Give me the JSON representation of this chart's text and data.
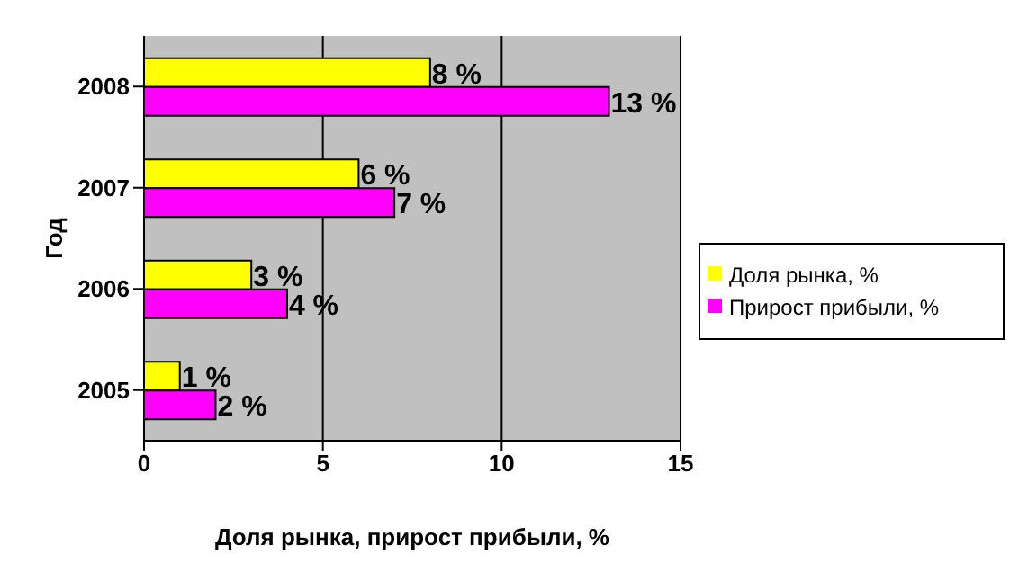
{
  "chart_data": {
    "type": "bar",
    "orientation": "horizontal",
    "xlabel": "Доля рынка, прирост прибыли, %",
    "ylabel": "Год",
    "categories": [
      "2008",
      "2007",
      "2006",
      "2005"
    ],
    "series": [
      {
        "name": "Доля рынка, %",
        "color": "#ffff00",
        "values": [
          8,
          6,
          3,
          1
        ],
        "value_labels": [
          "8 %",
          "6 %",
          "3 %",
          "1 %"
        ]
      },
      {
        "name": "Прирост прибыли, %",
        "color": "#ff00ff",
        "values": [
          13,
          7,
          4,
          2
        ],
        "value_labels": [
          "13 %",
          "7 %",
          "4 %",
          "2 %"
        ]
      }
    ],
    "xlim": [
      0,
      15
    ],
    "xticks": [
      0,
      5,
      10,
      15
    ],
    "grid": "x",
    "legend": "right"
  }
}
